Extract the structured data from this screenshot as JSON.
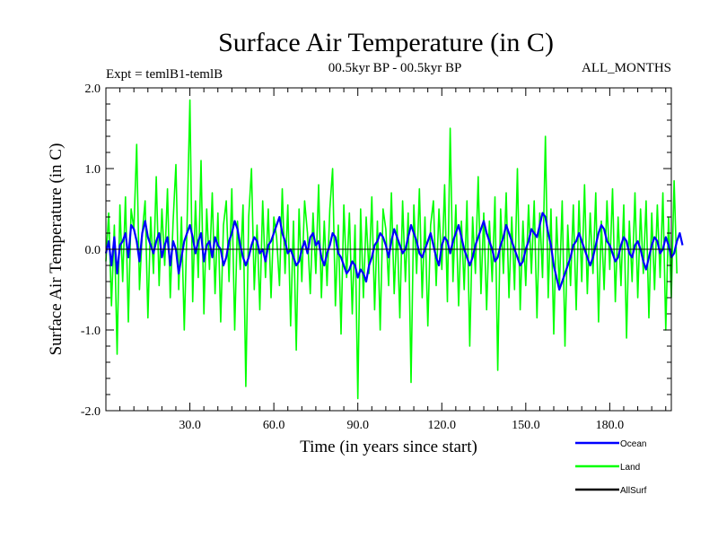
{
  "chart_data": {
    "type": "line",
    "title": "Surface Air Temperature (in C)",
    "subtitle_left": "Expt = temlB1-temlB",
    "subtitle_center": "00.5kyr BP - 00.5kyr BP",
    "subtitle_right": "ALL_MONTHS",
    "xlabel": "Time (in years since start)",
    "ylabel": "Surface Air Temperature (in C)",
    "xlim": [
      0,
      202
    ],
    "ylim": [
      -2.0,
      2.0
    ],
    "x_ticks": [
      30,
      60,
      90,
      120,
      150,
      180
    ],
    "x_tick_labels": [
      "30.0",
      "60.0",
      "90.0",
      "120.0",
      "150.0",
      "180.0"
    ],
    "y_ticks": [
      2.0,
      1.0,
      0.0,
      -1.0,
      -2.0
    ],
    "y_tick_labels": [
      "2.0",
      "1.0",
      "0.0",
      "-1.0",
      "-2.0"
    ],
    "reference_line": 0.0,
    "series": [
      {
        "name": "Land",
        "color": "#00ff00",
        "x_start": 0,
        "x_step": 1,
        "values": [
          -0.15,
          0.45,
          -0.7,
          0.3,
          -1.3,
          0.55,
          -0.4,
          0.65,
          -0.9,
          0.5,
          0.25,
          1.3,
          -0.5,
          0.2,
          0.6,
          -0.85,
          0.4,
          -0.3,
          0.9,
          -0.45,
          0.5,
          -0.2,
          0.75,
          -0.6,
          0.35,
          1.05,
          -0.5,
          0.4,
          -1.0,
          0.3,
          1.85,
          -0.65,
          0.6,
          -0.35,
          1.1,
          -0.8,
          0.5,
          -0.25,
          0.7,
          -0.55,
          0.45,
          -0.9,
          0.3,
          0.6,
          -0.4,
          0.75,
          -1.0,
          0.35,
          -0.25,
          0.55,
          -1.7,
          0.4,
          1.0,
          -0.5,
          0.3,
          -0.75,
          0.6,
          -0.35,
          0.5,
          -0.6,
          0.4,
          0.15,
          -0.45,
          0.75,
          -0.3,
          0.55,
          -0.95,
          0.35,
          -1.25,
          0.5,
          -0.4,
          0.6,
          0.2,
          -0.55,
          0.45,
          -0.3,
          0.8,
          -0.6,
          0.35,
          -0.45,
          0.5,
          1.0,
          -0.7,
          0.3,
          -1.05,
          0.55,
          -0.35,
          0.45,
          -0.8,
          0.3,
          -1.85,
          0.5,
          -0.6,
          0.4,
          -0.3,
          0.65,
          -0.75,
          0.35,
          -1.0,
          0.5,
          0.25,
          -0.45,
          0.7,
          -0.55,
          0.3,
          -0.85,
          0.6,
          -0.4,
          0.45,
          -1.65,
          0.55,
          -0.3,
          0.75,
          -0.6,
          0.4,
          -0.95,
          0.3,
          0.6,
          -0.45,
          0.5,
          -0.25,
          0.8,
          -0.65,
          1.5,
          -0.4,
          0.55,
          -0.7,
          0.35,
          -0.5,
          0.6,
          -1.2,
          0.4,
          -0.3,
          0.9,
          -0.55,
          0.45,
          -0.75,
          0.35,
          -0.4,
          0.65,
          -1.5,
          0.5,
          -0.3,
          0.7,
          -0.6,
          0.4,
          -0.5,
          1.0,
          -0.75,
          0.35,
          -0.45,
          0.55,
          -0.3,
          0.6,
          -0.85,
          0.45,
          -0.35,
          1.4,
          -0.6,
          0.5,
          -1.05,
          0.4,
          -0.5,
          0.6,
          -1.2,
          0.3,
          -0.45,
          0.55,
          -0.75,
          0.6,
          -0.4,
          0.8,
          -0.55,
          0.45,
          -0.3,
          0.7,
          -0.9,
          0.35,
          -0.5,
          0.6,
          -0.25,
          0.75,
          -0.65,
          0.4,
          -0.45,
          0.55,
          -1.1,
          0.35,
          -0.4,
          0.7,
          -0.6,
          0.5,
          -0.3,
          0.6,
          -0.85,
          0.45,
          -0.5,
          0.55,
          -0.35,
          0.7,
          -1.0,
          0.4,
          -0.6,
          0.85,
          -0.3
        ]
      },
      {
        "name": "Ocean",
        "color": "#0000ff",
        "x_start": 0,
        "x_step": 1,
        "values": [
          -0.05,
          0.1,
          -0.2,
          0.15,
          -0.3,
          0.05,
          0.1,
          0.2,
          -0.1,
          0.3,
          0.25,
          0.1,
          -0.15,
          0.2,
          0.35,
          0.15,
          0.05,
          -0.05,
          0.1,
          0.2,
          -0.1,
          0.05,
          0.15,
          -0.2,
          0.1,
          0.0,
          -0.3,
          -0.1,
          0.1,
          0.2,
          0.3,
          0.15,
          -0.05,
          0.1,
          0.2,
          -0.15,
          0.05,
          0.1,
          -0.1,
          0.15,
          0.05,
          0.0,
          -0.2,
          -0.1,
          0.1,
          0.2,
          0.35,
          0.25,
          0.05,
          -0.1,
          -0.2,
          -0.1,
          0.05,
          0.15,
          0.1,
          -0.05,
          0.0,
          -0.15,
          0.05,
          0.1,
          0.2,
          0.3,
          0.4,
          0.2,
          0.1,
          -0.05,
          0.0,
          -0.1,
          -0.2,
          -0.15,
          0.0,
          0.1,
          -0.05,
          0.15,
          0.2,
          0.05,
          0.1,
          -0.1,
          -0.2,
          -0.05,
          0.05,
          0.2,
          0.15,
          -0.05,
          -0.1,
          -0.2,
          -0.3,
          -0.25,
          -0.15,
          -0.2,
          -0.35,
          -0.25,
          -0.3,
          -0.4,
          -0.2,
          -0.1,
          0.05,
          0.1,
          0.2,
          0.15,
          0.05,
          -0.1,
          0.1,
          0.25,
          0.15,
          0.05,
          -0.05,
          0.0,
          0.15,
          0.3,
          0.2,
          0.1,
          -0.05,
          -0.1,
          0.0,
          0.1,
          0.2,
          0.05,
          -0.1,
          -0.2,
          0.05,
          0.15,
          0.1,
          -0.05,
          0.1,
          0.2,
          0.3,
          0.15,
          0.0,
          -0.1,
          -0.2,
          -0.1,
          0.05,
          0.15,
          0.25,
          0.35,
          0.2,
          0.1,
          0.0,
          -0.15,
          -0.1,
          0.05,
          0.15,
          0.3,
          0.2,
          0.1,
          0.0,
          -0.1,
          -0.2,
          -0.15,
          0.0,
          0.1,
          0.25,
          0.2,
          0.15,
          0.3,
          0.45,
          0.4,
          0.2,
          0.05,
          -0.2,
          -0.35,
          -0.5,
          -0.4,
          -0.3,
          -0.2,
          -0.1,
          0.05,
          0.1,
          0.2,
          0.1,
          0.0,
          -0.1,
          -0.2,
          -0.1,
          0.05,
          0.2,
          0.3,
          0.25,
          0.1,
          0.05,
          -0.05,
          -0.15,
          -0.1,
          0.05,
          0.15,
          0.1,
          -0.05,
          -0.1,
          0.05,
          0.1,
          0.0,
          -0.15,
          -0.25,
          -0.1,
          0.05,
          0.15,
          0.1,
          -0.05,
          0.0,
          0.15,
          0.05,
          -0.1,
          -0.05,
          0.1,
          0.2,
          0.05
        ]
      },
      {
        "name": "AllSurf",
        "color": "#000000",
        "x_start": 0,
        "x_step": 1,
        "values": []
      }
    ],
    "legend_position": "bottom-right",
    "legend": [
      {
        "label": "Ocean",
        "color": "#0000ff"
      },
      {
        "label": "Land",
        "color": "#00ff00"
      },
      {
        "label": "AllSurf",
        "color": "#000000"
      }
    ]
  }
}
